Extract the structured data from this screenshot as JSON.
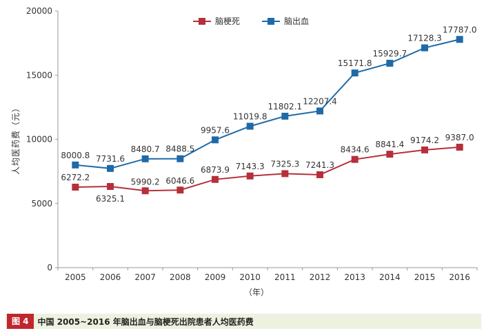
{
  "chart_data": {
    "type": "line",
    "x": [
      "2005",
      "2006",
      "2007",
      "2008",
      "2009",
      "2010",
      "2011",
      "2012",
      "2013",
      "2014",
      "2015",
      "2016"
    ],
    "series": [
      {
        "name": "脑梗死",
        "color": "#b5303a",
        "marker": "square",
        "values": [
          6272.2,
          6325.1,
          5990.2,
          6046.6,
          6873.9,
          7143.3,
          7325.3,
          7241.3,
          8434.6,
          8841.4,
          9174.2,
          9387.0
        ],
        "labels": [
          "6272.2",
          "6325.1",
          "5990.2",
          "6046.6",
          "6873.9",
          "7143.3",
          "7325.3",
          "7241.3",
          "8434.6",
          "8841.4",
          "9174.2",
          "9387.0"
        ]
      },
      {
        "name": "脑出血",
        "color": "#1e6aa8",
        "marker": "square",
        "values": [
          8000.8,
          7731.6,
          8480.7,
          8488.5,
          9957.6,
          11019.8,
          11802.1,
          12207.4,
          15171.8,
          15929.7,
          17128.3,
          17787.0
        ],
        "labels": [
          "8000.8",
          "7731.6",
          "8480.7",
          "8488.5",
          "9957.6",
          "11019.8",
          "11802.1",
          "12207.4",
          "15171.8",
          "15929.7",
          "17128.3",
          "17787.0"
        ]
      }
    ],
    "ylim": [
      0,
      20000
    ],
    "yticks": [
      0,
      5000,
      10000,
      15000,
      20000
    ],
    "ylabel": "人均医药费（元）",
    "xlabel": "（年）",
    "grid": false,
    "legend": "top-center"
  },
  "caption": {
    "badge": "图 4",
    "title": "中国 2005~2016 年脑出血与脑梗死出院患者人均医药费"
  }
}
